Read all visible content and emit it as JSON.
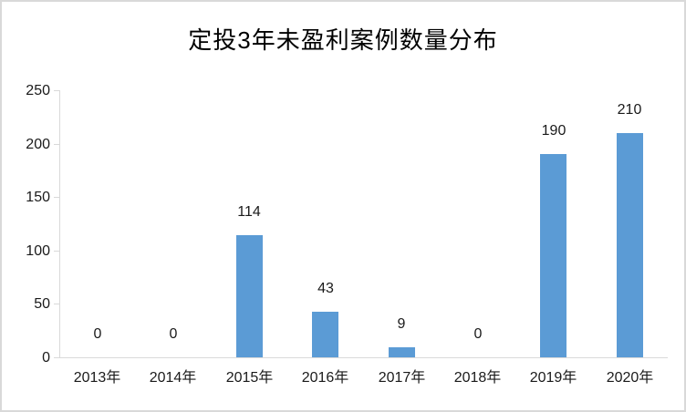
{
  "chart_data": {
    "type": "bar",
    "title": "定投3年未盈利案例数量分布",
    "categories": [
      "2013年",
      "2014年",
      "2015年",
      "2016年",
      "2017年",
      "2018年",
      "2019年",
      "2020年"
    ],
    "values": [
      0,
      0,
      114,
      43,
      9,
      0,
      190,
      210
    ],
    "data_labels": [
      "0",
      "0",
      "114",
      "43",
      "9",
      "0",
      "190",
      "210"
    ],
    "xlabel": "",
    "ylabel": "",
    "ylim": [
      0,
      250
    ],
    "yticks": [
      0,
      50,
      100,
      150,
      200,
      250
    ],
    "grid": false,
    "legend_position": "none",
    "colors": {
      "bar": "#5B9BD5",
      "axis": "#D9D9D9",
      "text": "#1A1A1A",
      "title": "#000000",
      "frame_border": "#D9D9D9",
      "background": "#FFFFFF"
    }
  }
}
